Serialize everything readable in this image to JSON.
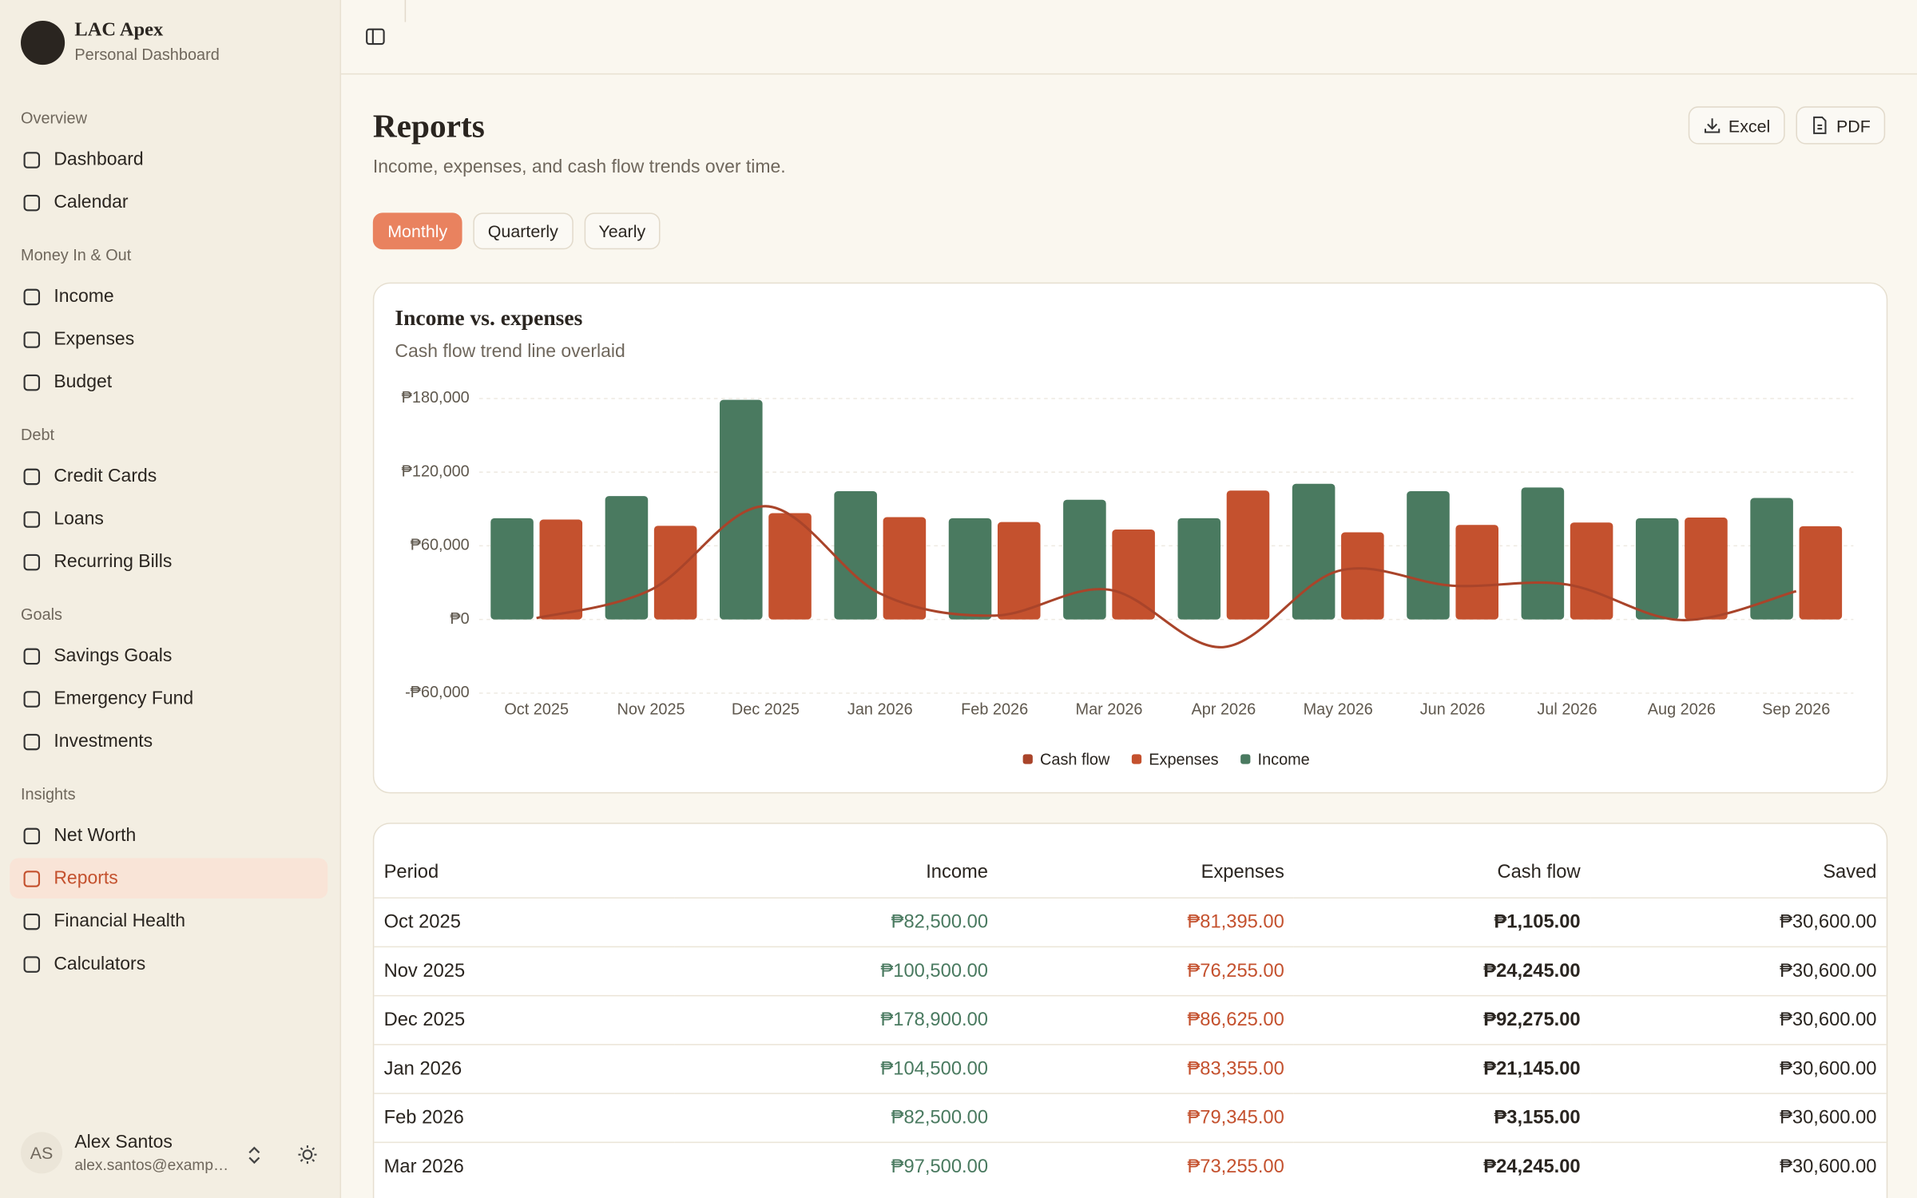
{
  "sidebar": {
    "brand": {
      "name": "LAC Apex",
      "subtitle": "Personal Dashboard"
    },
    "sections": [
      {
        "title": "Overview",
        "items": [
          {
            "label": "Dashboard"
          },
          {
            "label": "Calendar"
          }
        ]
      },
      {
        "title": "Money In & Out",
        "items": [
          {
            "label": "Income"
          },
          {
            "label": "Expenses"
          },
          {
            "label": "Budget"
          }
        ]
      },
      {
        "title": "Debt",
        "items": [
          {
            "label": "Credit Cards"
          },
          {
            "label": "Loans"
          },
          {
            "label": "Recurring Bills"
          }
        ]
      },
      {
        "title": "Goals",
        "items": [
          {
            "label": "Savings Goals"
          },
          {
            "label": "Emergency Fund"
          },
          {
            "label": "Investments"
          }
        ]
      },
      {
        "title": "Insights",
        "items": [
          {
            "label": "Net Worth"
          },
          {
            "label": "Reports",
            "active": true
          },
          {
            "label": "Financial Health"
          },
          {
            "label": "Calculators"
          }
        ]
      }
    ],
    "user": {
      "initials": "AS",
      "name": "Alex Santos",
      "email": "alex.santos@examp…"
    }
  },
  "header": {
    "title": "Reports",
    "subtitle": "Income, expenses, and cash flow trends over time.",
    "buttons": [
      "Excel",
      "PDF"
    ]
  },
  "tabs": [
    {
      "label": "Monthly",
      "active": true
    },
    {
      "label": "Quarterly"
    },
    {
      "label": "Yearly"
    }
  ],
  "chart_data": {
    "type": "bar",
    "title": "Income vs. expenses",
    "subtitle": "Cash flow trend line overlaid",
    "categories": [
      "Oct 2025",
      "Nov 2025",
      "Dec 2025",
      "Jan 2026",
      "Feb 2026",
      "Mar 2026",
      "Apr 2026",
      "May 2026",
      "Jun 2026",
      "Jul 2026",
      "Aug 2026",
      "Sep 2026"
    ],
    "series": [
      {
        "name": "Cash flow",
        "type": "line",
        "color": "#a9442a",
        "values": [
          1105,
          24245,
          92275,
          21145,
          3155,
          24245,
          -22500,
          39500,
          27500,
          28500,
          -500,
          23000
        ]
      },
      {
        "name": "Expenses",
        "type": "bar",
        "color": "#c4512e",
        "values": [
          81395,
          76255,
          86625,
          83355,
          79345,
          73255,
          105000,
          71000,
          77000,
          79000,
          83000,
          76000
        ]
      },
      {
        "name": "Income",
        "type": "bar",
        "color": "#4a7a60",
        "values": [
          82500,
          100500,
          178900,
          104500,
          82500,
          97500,
          82500,
          110500,
          104500,
          107500,
          82500,
          99000
        ]
      }
    ],
    "ylim": [
      -60000,
      180000
    ],
    "yticks": [
      {
        "value": -60000,
        "label": "-₱60,000"
      },
      {
        "value": 0,
        "label": "₱0"
      },
      {
        "value": 60000,
        "label": "₱60,000"
      },
      {
        "value": 120000,
        "label": "₱120,000"
      },
      {
        "value": 180000,
        "label": "₱180,000"
      }
    ],
    "grid": true
  },
  "table": {
    "columns": [
      "Period",
      "Income",
      "Expenses",
      "Cash flow",
      "Saved"
    ],
    "rows": [
      [
        "Oct 2025",
        "₱82,500.00",
        "₱81,395.00",
        "₱1,105.00",
        "₱30,600.00"
      ],
      [
        "Nov 2025",
        "₱100,500.00",
        "₱76,255.00",
        "₱24,245.00",
        "₱30,600.00"
      ],
      [
        "Dec 2025",
        "₱178,900.00",
        "₱86,625.00",
        "₱92,275.00",
        "₱30,600.00"
      ],
      [
        "Jan 2026",
        "₱104,500.00",
        "₱83,355.00",
        "₱21,145.00",
        "₱30,600.00"
      ],
      [
        "Feb 2026",
        "₱82,500.00",
        "₱79,345.00",
        "₱3,155.00",
        "₱30,600.00"
      ],
      [
        "Mar 2026",
        "₱97,500.00",
        "₱73,255.00",
        "₱24,245.00",
        "₱30,600.00"
      ]
    ]
  }
}
